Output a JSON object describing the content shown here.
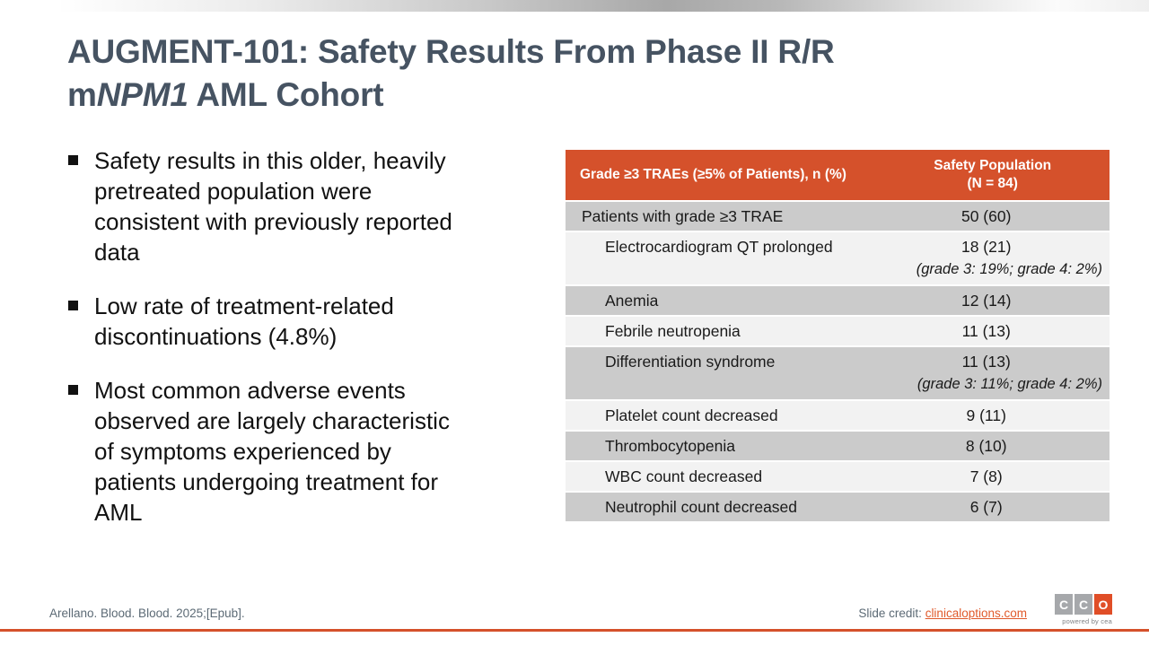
{
  "slide": {
    "title": {
      "line1": "AUGMENT-101: Safety Results From Phase II R/R",
      "line2_prefix": "m",
      "line2_italic": "NPM1",
      "line2_suffix": " AML Cohort"
    },
    "bullets": [
      "Safety results in this older, heavily pretreated population were consistent with previously reported data",
      "Low rate of treatment-related discontinuations (4.8%)",
      "Most common adverse events observed are largely characteristic of symptoms experienced by patients undergoing treatment for AML"
    ]
  },
  "table": {
    "header": {
      "col1": "Grade ≥3 TRAEs (≥5% of Patients), n (%)",
      "col2_line1": "Safety Population",
      "col2_line2": "(N = 84)"
    },
    "rows": [
      {
        "label": "Patients with grade ≥3 TRAE",
        "value": "50 (60)",
        "note": ""
      },
      {
        "label": "Electrocardiogram QT prolonged",
        "value": "18 (21)",
        "note": "(grade 3: 19%; grade 4: 2%)"
      },
      {
        "label": "Anemia",
        "value": "12 (14)",
        "note": ""
      },
      {
        "label": "Febrile neutropenia",
        "value": "11 (13)",
        "note": ""
      },
      {
        "label": "Differentiation syndrome",
        "value": "11 (13)",
        "note": "(grade 3: 11%; grade 4: 2%)"
      },
      {
        "label": "Platelet count decreased",
        "value": "9 (11)",
        "note": ""
      },
      {
        "label": "Thrombocytopenia",
        "value": "8 (10)",
        "note": ""
      },
      {
        "label": "WBC count decreased",
        "value": "7 (8)",
        "note": ""
      },
      {
        "label": "Neutrophil count decreased",
        "value": "6 (7)",
        "note": ""
      }
    ]
  },
  "footer": {
    "citation": "Arellano. Blood. Blood. 2025;[Epub].",
    "credit_label": "Slide credit: ",
    "credit_link": "clinicaloptions.com",
    "logo": {
      "c1": "C",
      "c2": "C",
      "c3": "O",
      "powered": "powered by cea"
    }
  },
  "colors": {
    "accent_orange": "#d5512b",
    "link_orange": "#e05a2b",
    "title_slate": "#465362",
    "row_dark": "#cbcbcb",
    "row_light": "#f2f2f2"
  }
}
